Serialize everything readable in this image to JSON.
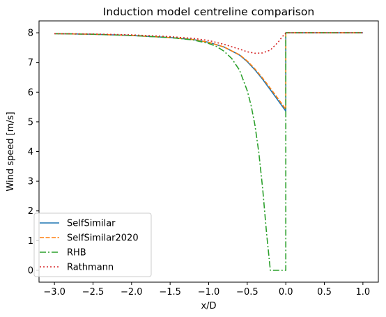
{
  "chart_data": {
    "type": "line",
    "title": "Induction model centreline comparison",
    "xlabel": "x/D",
    "ylabel": "Wind speed [m/s]",
    "xlim": [
      -3.2,
      1.2
    ],
    "ylim": [
      -0.4,
      8.4
    ],
    "xticks": [
      -3.0,
      -2.5,
      -2.0,
      -1.5,
      -1.0,
      -0.5,
      0.0,
      0.5,
      1.0
    ],
    "xtick_labels": [
      "−3.0",
      "−2.5",
      "−2.0",
      "−1.5",
      "−1.0",
      "−0.5",
      "0.0",
      "0.5",
      "1.0"
    ],
    "yticks": [
      0,
      1,
      2,
      3,
      4,
      5,
      6,
      7,
      8
    ],
    "ytick_labels": [
      "0",
      "1",
      "2",
      "3",
      "4",
      "5",
      "6",
      "7",
      "8"
    ],
    "grid": false,
    "legend_position": "lower-left",
    "series": [
      {
        "name": "SelfSimilar",
        "color": "#1f77b4",
        "dash": "solid",
        "x": [
          -3.0,
          -2.5,
          -2.0,
          -1.5,
          -1.2,
          -1.0,
          -0.8,
          -0.6,
          -0.5,
          -0.4,
          -0.3,
          -0.2,
          -0.1,
          0.0,
          0.0,
          0.2,
          0.5,
          1.0
        ],
        "y": [
          7.97,
          7.95,
          7.91,
          7.84,
          7.77,
          7.68,
          7.52,
          7.25,
          7.03,
          6.75,
          6.43,
          6.08,
          5.72,
          5.36,
          8.0,
          8.0,
          8.0,
          8.0
        ]
      },
      {
        "name": "SelfSimilar2020",
        "color": "#ff7f0e",
        "dash": "dashed",
        "x": [
          -3.0,
          -2.5,
          -2.0,
          -1.5,
          -1.2,
          -1.0,
          -0.8,
          -0.6,
          -0.5,
          -0.4,
          -0.3,
          -0.2,
          -0.1,
          0.0,
          0.0,
          0.2,
          0.5,
          1.0
        ],
        "y": [
          7.97,
          7.95,
          7.91,
          7.84,
          7.77,
          7.68,
          7.52,
          7.26,
          7.05,
          6.78,
          6.47,
          6.13,
          5.78,
          5.42,
          8.0,
          8.0,
          8.0,
          8.0
        ]
      },
      {
        "name": "RHB",
        "color": "#2ca02c",
        "dash": "dashdot",
        "x": [
          -3.0,
          -2.5,
          -2.0,
          -1.5,
          -1.2,
          -1.0,
          -0.9,
          -0.8,
          -0.7,
          -0.6,
          -0.5,
          -0.45,
          -0.4,
          -0.35,
          -0.3,
          -0.25,
          -0.2,
          -0.2,
          0.0,
          0.0,
          0.5,
          1.0
        ],
        "y": [
          7.97,
          7.95,
          7.91,
          7.84,
          7.76,
          7.64,
          7.54,
          7.38,
          7.13,
          6.74,
          6.05,
          5.55,
          4.89,
          3.98,
          2.75,
          1.27,
          0.0,
          0.0,
          0.0,
          8.0,
          8.0,
          8.0
        ]
      },
      {
        "name": "Rathmann",
        "color": "#d62728",
        "dash": "dotted",
        "x": [
          -3.0,
          -2.5,
          -2.0,
          -1.5,
          -1.2,
          -1.0,
          -0.8,
          -0.6,
          -0.5,
          -0.4,
          -0.3,
          -0.2,
          -0.1,
          -0.05,
          0.0,
          0.2,
          0.5,
          1.0
        ],
        "y": [
          7.97,
          7.96,
          7.93,
          7.87,
          7.81,
          7.74,
          7.61,
          7.45,
          7.36,
          7.31,
          7.32,
          7.42,
          7.68,
          7.85,
          8.0,
          8.0,
          8.0,
          8.0
        ]
      }
    ]
  }
}
